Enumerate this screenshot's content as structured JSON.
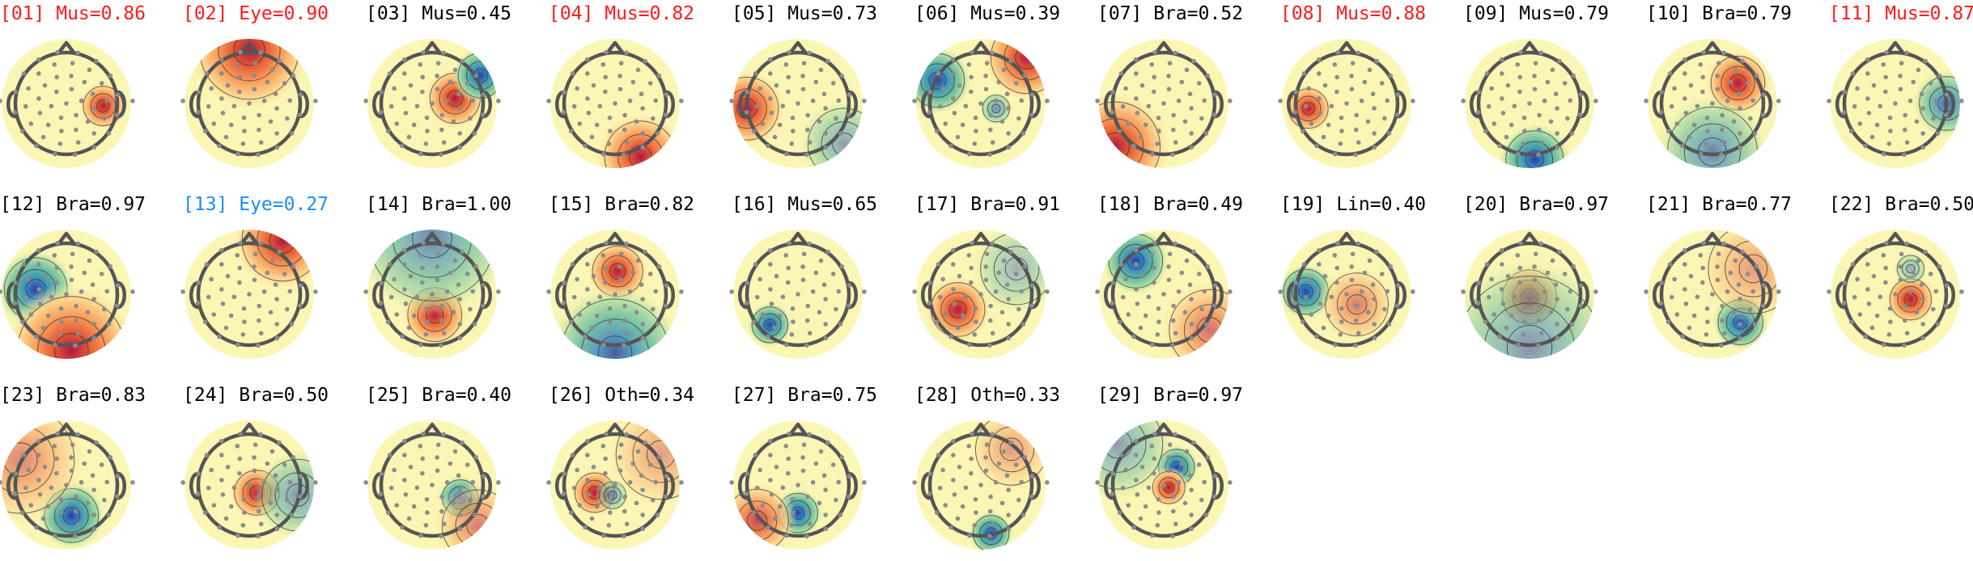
{
  "figure": {
    "colors": {
      "flagged_red": "#ff1a1a",
      "flagged_blue": "#1a8cff",
      "normal": "#000000",
      "electrode": "#8c8c8c",
      "head_outline": "#555555",
      "contour": "#333333",
      "colormap": [
        "#2c3e9e",
        "#3b8bc2",
        "#5fb5a3",
        "#a4d9a3",
        "#e3f3a5",
        "#fcf6b5",
        "#fdd28a",
        "#f89858",
        "#e35635",
        "#b01845"
      ]
    },
    "components": [
      {
        "label": "[01] Mus=0.86",
        "flag": "red"
      },
      {
        "label": "[02] Eye=0.90",
        "flag": "red"
      },
      {
        "label": "[03] Mus=0.45",
        "flag": "none"
      },
      {
        "label": "[04] Mus=0.82",
        "flag": "red"
      },
      {
        "label": "[05] Mus=0.73",
        "flag": "none"
      },
      {
        "label": "[06] Mus=0.39",
        "flag": "none"
      },
      {
        "label": "[07] Bra=0.52",
        "flag": "none"
      },
      {
        "label": "[08] Mus=0.88",
        "flag": "red"
      },
      {
        "label": "[09] Mus=0.79",
        "flag": "none"
      },
      {
        "label": "[10] Bra=0.79",
        "flag": "none"
      },
      {
        "label": "[11] Mus=0.87",
        "flag": "red"
      },
      {
        "label": "[12] Bra=0.97",
        "flag": "none"
      },
      {
        "label": "[13] Eye=0.27",
        "flag": "blue"
      },
      {
        "label": "[14] Bra=1.00",
        "flag": "none"
      },
      {
        "label": "[15] Bra=0.82",
        "flag": "none"
      },
      {
        "label": "[16] Mus=0.65",
        "flag": "none"
      },
      {
        "label": "[17] Bra=0.91",
        "flag": "none"
      },
      {
        "label": "[18] Bra=0.49",
        "flag": "none"
      },
      {
        "label": "[19] Lin=0.40",
        "flag": "none"
      },
      {
        "label": "[20] Bra=0.97",
        "flag": "none"
      },
      {
        "label": "[21] Bra=0.77",
        "flag": "none"
      },
      {
        "label": "[22] Bra=0.50",
        "flag": "none"
      },
      {
        "label": "[23] Bra=0.83",
        "flag": "none"
      },
      {
        "label": "[24] Bra=0.50",
        "flag": "none"
      },
      {
        "label": "[25] Bra=0.40",
        "flag": "none"
      },
      {
        "label": "[26] Oth=0.34",
        "flag": "none"
      },
      {
        "label": "[27] Bra=0.75",
        "flag": "none"
      },
      {
        "label": "[28] Oth=0.33",
        "flag": "none"
      },
      {
        "label": "[29] Bra=0.97",
        "flag": "none"
      }
    ]
  }
}
